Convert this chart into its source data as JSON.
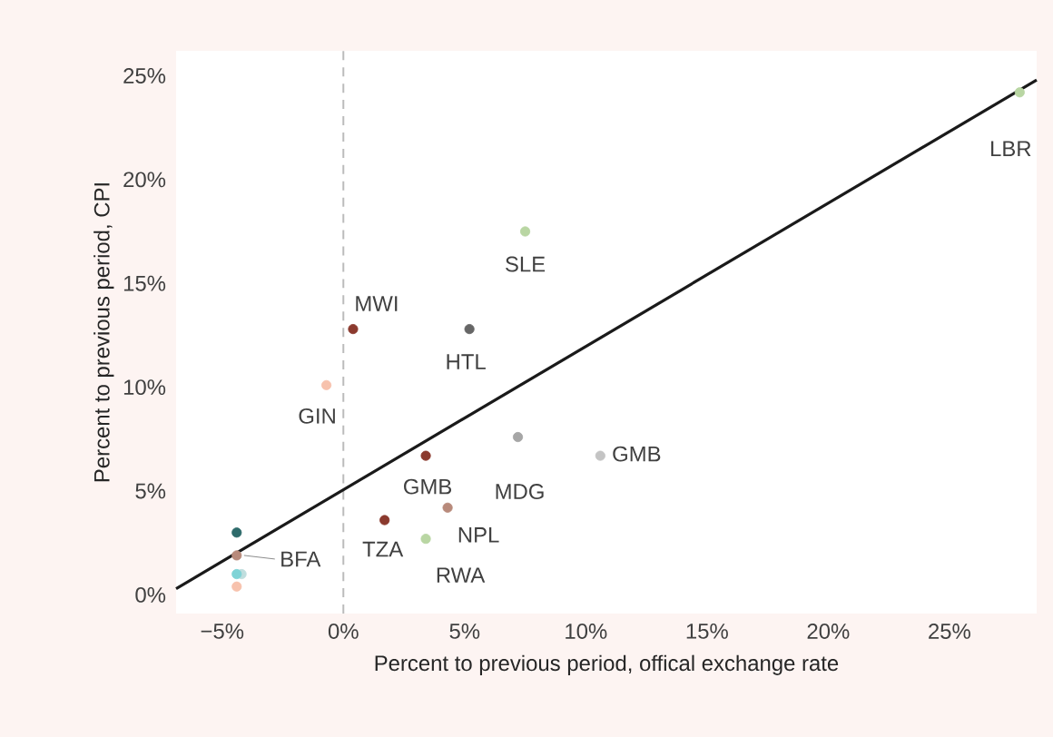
{
  "chart_data": {
    "type": "scatter",
    "xlabel": "Percent to previous period, offical exchange rate",
    "ylabel": "Percent to previous period, CPI",
    "xlim": [
      -6.9,
      28.6
    ],
    "ylim": [
      -0.9,
      26.2
    ],
    "xticks": [
      {
        "value": -5,
        "label": "−5%"
      },
      {
        "value": 0,
        "label": "0%"
      },
      {
        "value": 5,
        "label": "5%"
      },
      {
        "value": 10,
        "label": "10%"
      },
      {
        "value": 15,
        "label": "15%"
      },
      {
        "value": 20,
        "label": "20%"
      },
      {
        "value": 25,
        "label": "25%"
      }
    ],
    "yticks": [
      {
        "value": 0,
        "label": "0%"
      },
      {
        "value": 5,
        "label": "5%"
      },
      {
        "value": 10,
        "label": "10%"
      },
      {
        "value": 15,
        "label": "15%"
      },
      {
        "value": 20,
        "label": "20%"
      },
      {
        "value": 25,
        "label": "25%"
      }
    ],
    "grid": false,
    "series": [
      {
        "marker": "circle",
        "x": [
          7.5,
          0.4,
          5.2,
          -0.7,
          7.2,
          3.4,
          10.6,
          4.3,
          1.7,
          3.4,
          -4.4,
          -4.4,
          -4.2,
          -4.4,
          -4.4,
          27.9
        ],
        "values": [
          17.5,
          12.8,
          12.8,
          10.1,
          7.6,
          6.7,
          6.7,
          4.2,
          3.6,
          2.7,
          3.0,
          1.9,
          1.0,
          1.0,
          0.4,
          24.2
        ],
        "colors": [
          "#b9d6a3",
          "#8b3a2e",
          "#666666",
          "#f7c2ad",
          "#a6a6a6",
          "#8b3a2e",
          "#c4c4c4",
          "#b88a7b",
          "#8b3a2e",
          "#b9d6a3",
          "#2e6b6b",
          "#b88a7b",
          "#c0dede",
          "#7fd3d6",
          "#f7c2ad",
          "#b9d6a3"
        ]
      },
      {
        "type": "line",
        "x": [
          -6.9,
          28.6
        ],
        "values": [
          0.3,
          24.8
        ],
        "color": "#1a1a1a",
        "line_style": "solid",
        "marker": "none"
      }
    ],
    "ref_lines": [
      {
        "axis": "x",
        "value": 0,
        "color": "#bbbbbb",
        "line_style": "dashed"
      }
    ],
    "annotations": [
      {
        "text": "SLE",
        "x": 7.5,
        "y": 17.5
      },
      {
        "text": "MWI",
        "x": 0.4,
        "y": 12.8
      },
      {
        "text": "HTL",
        "x": 5.2,
        "y": 12.8
      },
      {
        "text": "GIN",
        "x": -0.7,
        "y": 10.1
      },
      {
        "text": "GMB",
        "x": 3.4,
        "y": 6.7
      },
      {
        "text": "MDG",
        "x": 7.2,
        "y": 7.6
      },
      {
        "text": "GMB",
        "x": 10.6,
        "y": 6.7
      },
      {
        "text": "NPL",
        "x": 4.3,
        "y": 4.2
      },
      {
        "text": "TZA",
        "x": 1.7,
        "y": 3.6
      },
      {
        "text": "RWA",
        "x": 3.4,
        "y": 2.7
      },
      {
        "text": "BFA",
        "x": -4.4,
        "y": 1.9
      },
      {
        "text": "LBR",
        "x": 27.9,
        "y": 24.2
      }
    ]
  }
}
